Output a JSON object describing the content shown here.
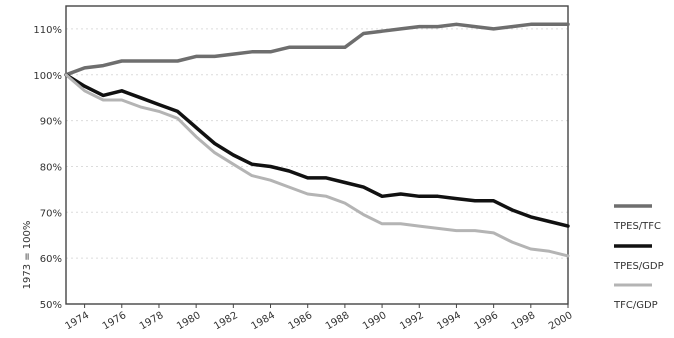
{
  "chart_data": {
    "type": "line",
    "ylabel": "1973 = 100%",
    "xlim": [
      1973,
      2000
    ],
    "ylim": [
      50,
      115
    ],
    "y_ticks": [
      50,
      60,
      70,
      80,
      90,
      100,
      110
    ],
    "y_tick_labels": [
      "50%",
      "60%",
      "70%",
      "80%",
      "90%",
      "100%",
      "110%"
    ],
    "x_ticks": [
      1974,
      1976,
      1978,
      1980,
      1982,
      1984,
      1986,
      1988,
      1990,
      1992,
      1994,
      1996,
      1998,
      2000
    ],
    "x_tick_labels": [
      "1974",
      "1976",
      "1978",
      "1980",
      "1982",
      "1984",
      "1986",
      "1988",
      "1990",
      "1992",
      "1994",
      "1996",
      "1998",
      "2000"
    ],
    "grid": true,
    "legend_position": "right",
    "x": [
      1973,
      1974,
      1975,
      1976,
      1977,
      1978,
      1979,
      1980,
      1981,
      1982,
      1983,
      1984,
      1985,
      1986,
      1987,
      1988,
      1989,
      1990,
      1991,
      1992,
      1993,
      1994,
      1995,
      1996,
      1997,
      1998,
      1999,
      2000
    ],
    "series": [
      {
        "name": "TPES/TFC",
        "color": "#6e6e6e",
        "width": 3.5,
        "values": [
          100,
          101.5,
          102,
          103,
          103,
          103,
          103,
          104,
          104,
          104.5,
          105,
          105,
          106,
          106,
          106,
          106,
          109,
          109.5,
          110,
          110.5,
          110.5,
          111,
          110.5,
          110,
          110.5,
          111,
          111,
          111
        ]
      },
      {
        "name": "TPES/GDP",
        "color": "#111111",
        "width": 3.5,
        "values": [
          100,
          97.5,
          95.5,
          96.5,
          95,
          93.5,
          92,
          88.5,
          85,
          82.5,
          80.5,
          80,
          79,
          77.5,
          77.5,
          76.5,
          75.5,
          73.5,
          74,
          73.5,
          73.5,
          73,
          72.5,
          72.5,
          70.5,
          69,
          68,
          67
        ]
      },
      {
        "name": "TFC/GDP",
        "color": "#b4b4b4",
        "width": 3,
        "values": [
          100,
          96.5,
          94.5,
          94.5,
          93,
          92,
          90.5,
          86.5,
          83,
          80.5,
          78,
          77,
          75.5,
          74,
          73.5,
          72,
          69.5,
          67.5,
          67.5,
          67,
          66.5,
          66,
          66,
          65.5,
          63.5,
          62,
          61.5,
          60.5
        ]
      }
    ]
  }
}
